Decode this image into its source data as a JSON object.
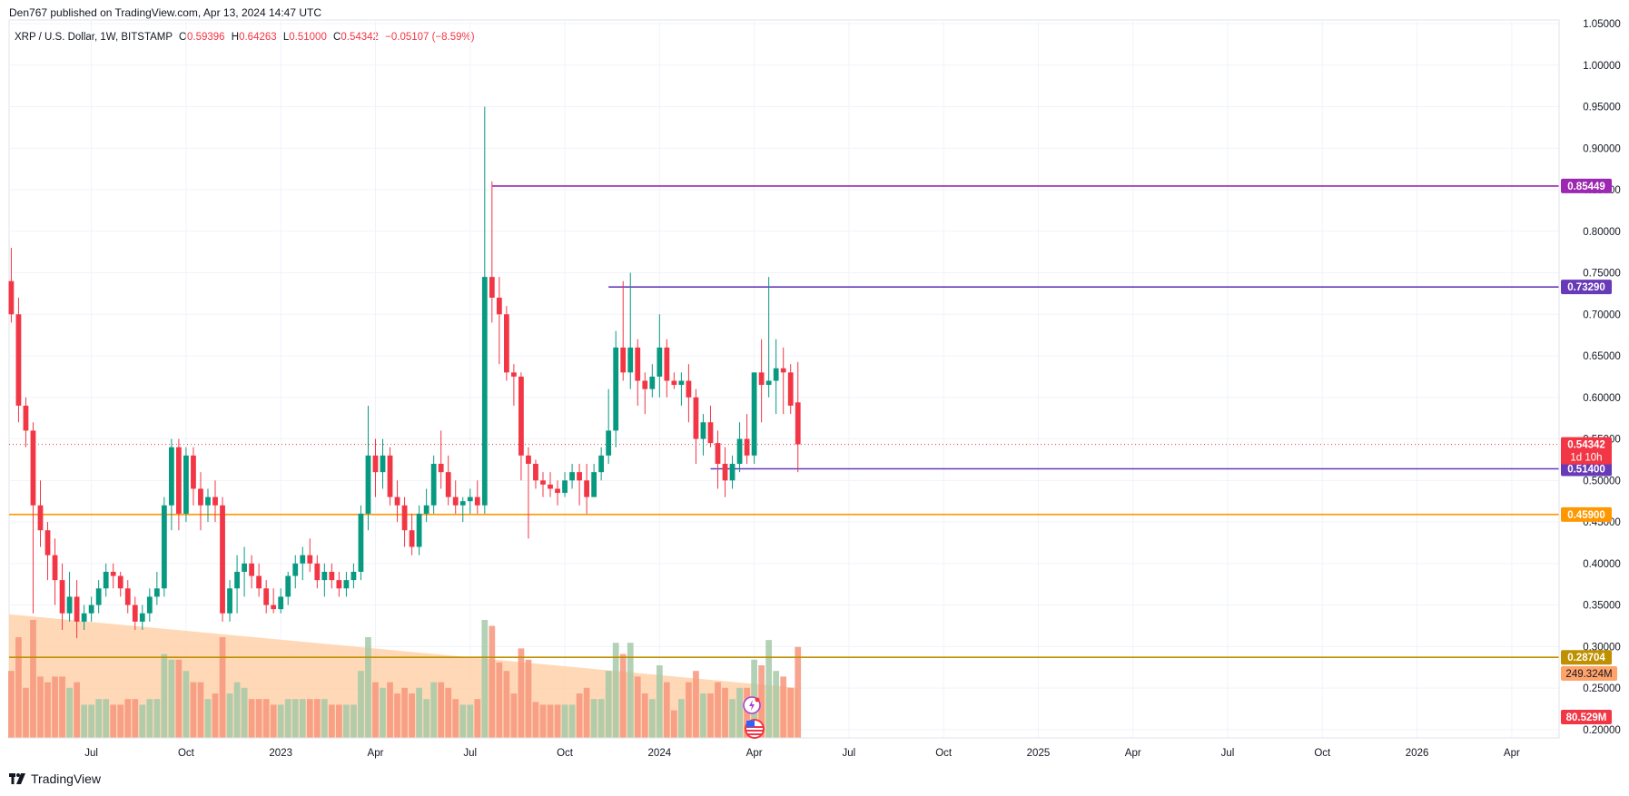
{
  "header": {
    "published": "Den767 published on TradingView.com, Apr 13, 2024 14:47 UTC",
    "symbol": "XRP / U.S. Dollar, 1W, BITSTAMP",
    "ohlc": {
      "o_label": "O",
      "o_value": "0.59396",
      "h_label": "H",
      "h_value": "0.64263",
      "l_label": "L",
      "l_value": "0.51000",
      "c_label": "C",
      "c_value": "0.54342",
      "change": "−0.05107 (−8.59%)"
    }
  },
  "footer": {
    "brand": "TradingView"
  },
  "colors": {
    "up": "#089981",
    "down": "#f23645",
    "vol_up": "#a4c9a8",
    "vol_down": "#f7957c",
    "vol_ma": "#ffcc9f",
    "grid": "#f0f3fa"
  },
  "chart_data": {
    "type": "candlestick",
    "price_axis": {
      "ticks": [
        "1.05000",
        "1.00000",
        "0.95000",
        "0.90000",
        "0.85000",
        "0.80000",
        "0.75000",
        "0.70000",
        "0.65000",
        "0.60000",
        "0.55000",
        "0.50000",
        "0.45000",
        "0.40000",
        "0.35000",
        "0.30000",
        "0.25000",
        "0.20000"
      ],
      "range": [
        0.19,
        1.05
      ]
    },
    "time_axis": {
      "ticks": [
        {
          "label": "Jul",
          "week": 11
        },
        {
          "label": "Oct",
          "week": 24
        },
        {
          "label": "2023",
          "week": 37
        },
        {
          "label": "Apr",
          "week": 50
        },
        {
          "label": "Jul",
          "week": 63
        },
        {
          "label": "Oct",
          "week": 76
        },
        {
          "label": "2024",
          "week": 89
        },
        {
          "label": "Apr",
          "week": 102
        },
        {
          "label": "Jul",
          "week": 115
        },
        {
          "label": "Oct",
          "week": 128
        },
        {
          "label": "2025",
          "week": 141
        },
        {
          "label": "Apr",
          "week": 154
        },
        {
          "label": "Jul",
          "week": 167
        },
        {
          "label": "Oct",
          "week": 180
        },
        {
          "label": "2026",
          "week": 193
        },
        {
          "label": "Apr",
          "week": 206
        }
      ],
      "range_weeks": [
        -0.3,
        212.5
      ]
    },
    "candles": [
      [
        0.74,
        0.78,
        0.69,
        0.7
      ],
      [
        0.7,
        0.72,
        0.57,
        0.59
      ],
      [
        0.59,
        0.6,
        0.54,
        0.56
      ],
      [
        0.56,
        0.57,
        0.34,
        0.47
      ],
      [
        0.47,
        0.5,
        0.42,
        0.44
      ],
      [
        0.44,
        0.45,
        0.38,
        0.41
      ],
      [
        0.41,
        0.43,
        0.35,
        0.38
      ],
      [
        0.38,
        0.4,
        0.32,
        0.34
      ],
      [
        0.34,
        0.39,
        0.33,
        0.36
      ],
      [
        0.36,
        0.38,
        0.31,
        0.33
      ],
      [
        0.33,
        0.35,
        0.32,
        0.34
      ],
      [
        0.34,
        0.36,
        0.33,
        0.35
      ],
      [
        0.35,
        0.38,
        0.34,
        0.37
      ],
      [
        0.37,
        0.4,
        0.36,
        0.39
      ],
      [
        0.39,
        0.4,
        0.37,
        0.385
      ],
      [
        0.385,
        0.39,
        0.36,
        0.37
      ],
      [
        0.37,
        0.38,
        0.34,
        0.35
      ],
      [
        0.35,
        0.36,
        0.32,
        0.33
      ],
      [
        0.33,
        0.35,
        0.32,
        0.34
      ],
      [
        0.34,
        0.37,
        0.33,
        0.36
      ],
      [
        0.36,
        0.39,
        0.35,
        0.37
      ],
      [
        0.37,
        0.48,
        0.36,
        0.47
      ],
      [
        0.47,
        0.55,
        0.44,
        0.54
      ],
      [
        0.54,
        0.55,
        0.44,
        0.46
      ],
      [
        0.46,
        0.54,
        0.45,
        0.53
      ],
      [
        0.53,
        0.54,
        0.47,
        0.49
      ],
      [
        0.49,
        0.51,
        0.44,
        0.47
      ],
      [
        0.47,
        0.49,
        0.45,
        0.48
      ],
      [
        0.48,
        0.5,
        0.45,
        0.47
      ],
      [
        0.47,
        0.48,
        0.33,
        0.34
      ],
      [
        0.34,
        0.38,
        0.33,
        0.37
      ],
      [
        0.37,
        0.41,
        0.34,
        0.39
      ],
      [
        0.39,
        0.42,
        0.36,
        0.4
      ],
      [
        0.4,
        0.41,
        0.37,
        0.385
      ],
      [
        0.385,
        0.4,
        0.36,
        0.37
      ],
      [
        0.37,
        0.38,
        0.34,
        0.35
      ],
      [
        0.35,
        0.37,
        0.34,
        0.345
      ],
      [
        0.345,
        0.37,
        0.34,
        0.36
      ],
      [
        0.36,
        0.39,
        0.35,
        0.385
      ],
      [
        0.385,
        0.41,
        0.37,
        0.4
      ],
      [
        0.4,
        0.42,
        0.38,
        0.41
      ],
      [
        0.41,
        0.43,
        0.39,
        0.4
      ],
      [
        0.4,
        0.41,
        0.37,
        0.38
      ],
      [
        0.38,
        0.4,
        0.36,
        0.39
      ],
      [
        0.39,
        0.4,
        0.37,
        0.38
      ],
      [
        0.38,
        0.39,
        0.36,
        0.37
      ],
      [
        0.37,
        0.39,
        0.36,
        0.38
      ],
      [
        0.38,
        0.4,
        0.37,
        0.39
      ],
      [
        0.39,
        0.47,
        0.38,
        0.46
      ],
      [
        0.46,
        0.59,
        0.44,
        0.53
      ],
      [
        0.53,
        0.55,
        0.48,
        0.51
      ],
      [
        0.51,
        0.55,
        0.49,
        0.53
      ],
      [
        0.53,
        0.54,
        0.47,
        0.48
      ],
      [
        0.48,
        0.5,
        0.45,
        0.47
      ],
      [
        0.47,
        0.48,
        0.42,
        0.44
      ],
      [
        0.44,
        0.46,
        0.41,
        0.42
      ],
      [
        0.42,
        0.47,
        0.41,
        0.46
      ],
      [
        0.46,
        0.49,
        0.45,
        0.47
      ],
      [
        0.47,
        0.53,
        0.46,
        0.52
      ],
      [
        0.52,
        0.56,
        0.49,
        0.51
      ],
      [
        0.51,
        0.53,
        0.47,
        0.48
      ],
      [
        0.48,
        0.5,
        0.46,
        0.47
      ],
      [
        0.47,
        0.48,
        0.45,
        0.475
      ],
      [
        0.475,
        0.49,
        0.46,
        0.48
      ],
      [
        0.48,
        0.5,
        0.46,
        0.47
      ],
      [
        0.47,
        0.95,
        0.46,
        0.745
      ],
      [
        0.745,
        0.86,
        0.69,
        0.72
      ],
      [
        0.72,
        0.745,
        0.64,
        0.7
      ],
      [
        0.7,
        0.71,
        0.62,
        0.63
      ],
      [
        0.63,
        0.64,
        0.59,
        0.625
      ],
      [
        0.625,
        0.63,
        0.5,
        0.53
      ],
      [
        0.53,
        0.54,
        0.43,
        0.52
      ],
      [
        0.52,
        0.525,
        0.49,
        0.5
      ],
      [
        0.5,
        0.51,
        0.48,
        0.495
      ],
      [
        0.495,
        0.51,
        0.48,
        0.49
      ],
      [
        0.49,
        0.5,
        0.47,
        0.485
      ],
      [
        0.485,
        0.51,
        0.48,
        0.5
      ],
      [
        0.5,
        0.52,
        0.49,
        0.51
      ],
      [
        0.51,
        0.52,
        0.47,
        0.5
      ],
      [
        0.5,
        0.52,
        0.46,
        0.48
      ],
      [
        0.48,
        0.52,
        0.48,
        0.51
      ],
      [
        0.51,
        0.54,
        0.5,
        0.53
      ],
      [
        0.53,
        0.61,
        0.52,
        0.56
      ],
      [
        0.56,
        0.68,
        0.54,
        0.66
      ],
      [
        0.66,
        0.74,
        0.62,
        0.63
      ],
      [
        0.63,
        0.75,
        0.61,
        0.66
      ],
      [
        0.66,
        0.67,
        0.59,
        0.62
      ],
      [
        0.62,
        0.63,
        0.58,
        0.61
      ],
      [
        0.61,
        0.64,
        0.6,
        0.625
      ],
      [
        0.625,
        0.7,
        0.6,
        0.66
      ],
      [
        0.66,
        0.67,
        0.6,
        0.62
      ],
      [
        0.62,
        0.63,
        0.61,
        0.615
      ],
      [
        0.615,
        0.63,
        0.59,
        0.62
      ],
      [
        0.62,
        0.64,
        0.57,
        0.6
      ],
      [
        0.6,
        0.61,
        0.52,
        0.55
      ],
      [
        0.55,
        0.58,
        0.53,
        0.57
      ],
      [
        0.57,
        0.59,
        0.54,
        0.545
      ],
      [
        0.545,
        0.56,
        0.49,
        0.52
      ],
      [
        0.52,
        0.54,
        0.48,
        0.5
      ],
      [
        0.5,
        0.53,
        0.49,
        0.52
      ],
      [
        0.52,
        0.57,
        0.51,
        0.55
      ],
      [
        0.55,
        0.58,
        0.52,
        0.53
      ],
      [
        0.53,
        0.63,
        0.52,
        0.63
      ],
      [
        0.63,
        0.67,
        0.57,
        0.615
      ],
      [
        0.615,
        0.745,
        0.6,
        0.62
      ],
      [
        0.62,
        0.67,
        0.58,
        0.635
      ],
      [
        0.635,
        0.66,
        0.58,
        0.63
      ],
      [
        0.63,
        0.64,
        0.58,
        0.59
      ],
      [
        0.59396,
        0.64263,
        0.51,
        0.54342
      ]
    ],
    "volume_ma_label": "249.324M",
    "volume_label": "80.529M",
    "horizontal_levels": [
      {
        "label": "0.85449",
        "value": 0.85449,
        "color": "#9c27b0",
        "from_week": 66
      },
      {
        "label": "0.73290",
        "value": 0.7329,
        "color": "#673ab7",
        "from_week": 82
      },
      {
        "label": "0.51400",
        "value": 0.514,
        "color": "#673ab7",
        "from_week": 96
      },
      {
        "label": "0.45900",
        "value": 0.459,
        "color": "#ff9800",
        "from_week": -1
      },
      {
        "label": "0.28704",
        "value": 0.28704,
        "color": "#bf9000",
        "from_week": -1
      }
    ],
    "current_price": {
      "label": "0.54342",
      "value": 0.54342,
      "countdown": "1d 10h",
      "color": "#f23645"
    }
  }
}
